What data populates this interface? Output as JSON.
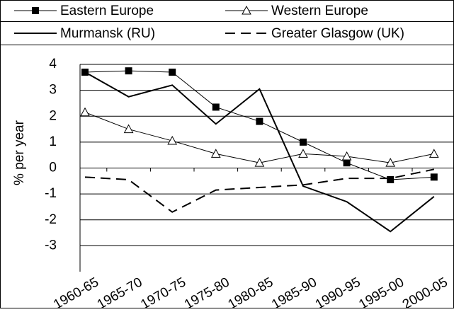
{
  "chart_data": {
    "type": "line",
    "y_label": "% per year",
    "categories": [
      "1960-65",
      "1965-70",
      "1970-75",
      "1975-80",
      "1980-85",
      "1985-90",
      "1990-95",
      "1995-00",
      "2000-05"
    ],
    "series": [
      {
        "name": "Eastern Europe",
        "color": "#000000",
        "marker": "square",
        "dash": false,
        "width": 1,
        "values": [
          3.7,
          3.75,
          3.7,
          2.35,
          1.8,
          1.0,
          0.2,
          -0.45,
          -0.35
        ]
      },
      {
        "name": "Western Europe",
        "color": "#000000",
        "marker": "triangle",
        "dash": false,
        "width": 1,
        "values": [
          2.15,
          1.5,
          1.05,
          0.55,
          0.2,
          0.55,
          0.45,
          0.2,
          0.55
        ]
      },
      {
        "name": "Murmansk (RU)",
        "color": "#000000",
        "marker": "none",
        "dash": false,
        "width": 2,
        "values": [
          3.7,
          2.75,
          3.2,
          1.7,
          3.05,
          -0.7,
          -1.3,
          -2.45,
          -1.1
        ]
      },
      {
        "name": "Greater Glasgow (UK)",
        "color": "#000000",
        "marker": "none",
        "dash": true,
        "width": 2,
        "values": [
          -0.35,
          -0.45,
          -1.7,
          -0.85,
          -0.75,
          -0.65,
          -0.4,
          -0.4,
          -0.05
        ]
      }
    ],
    "ylim": [
      -4,
      4
    ],
    "yticks": [
      -3,
      -2,
      -1,
      0,
      1,
      2,
      3,
      4
    ],
    "grid": true
  }
}
